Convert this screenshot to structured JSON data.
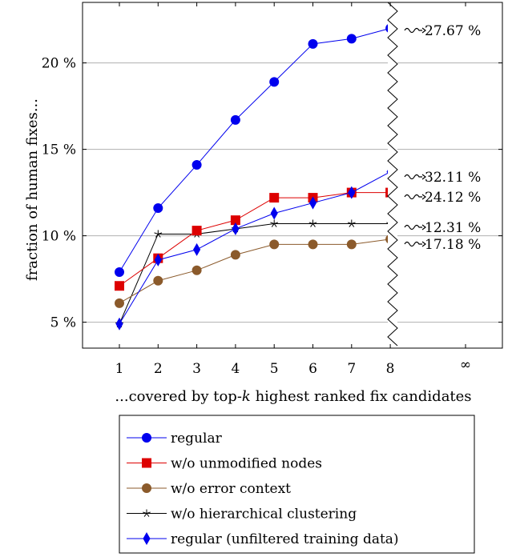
{
  "chart_data": {
    "type": "line",
    "xlabel": "...covered by top-",
    "xlabel_k": "k",
    "xlabel_rest": " highest ranked fix candidates",
    "ylabel": "fraction of human fixes...",
    "x": [
      1,
      2,
      3,
      4,
      5,
      6,
      7,
      8
    ],
    "x_tick_labels": [
      "1",
      "2",
      "3",
      "4",
      "5",
      "6",
      "7",
      "8",
      "∞"
    ],
    "ylim": [
      3.5,
      23.5
    ],
    "y_ticks": [
      5,
      10,
      15,
      20
    ],
    "y_tick_labels": [
      "5 %",
      "10 %",
      "15 %",
      "20 %"
    ],
    "grid": "horizontal",
    "legend_position": "bottom",
    "series": [
      {
        "name": "regular",
        "color": "#0000ee",
        "marker": "circle",
        "values": [
          7.9,
          11.6,
          14.1,
          16.7,
          18.9,
          21.1,
          21.4,
          22.0
        ],
        "infinity_label": "27.67 %"
      },
      {
        "name": "w/o unmodified nodes",
        "color": "#dd0000",
        "marker": "square",
        "values": [
          7.1,
          8.7,
          10.3,
          10.9,
          12.2,
          12.2,
          12.5,
          12.5
        ],
        "infinity_label": "24.12 %"
      },
      {
        "name": "w/o error context",
        "color": "#8b5a2b",
        "marker": "circle",
        "values": [
          6.1,
          7.4,
          8.0,
          8.9,
          9.5,
          9.5,
          9.5,
          9.8
        ],
        "infinity_label": "17.18 %"
      },
      {
        "name": "w/o hierarchical clustering",
        "color": "#000000",
        "marker": "star",
        "values": [
          4.9,
          10.1,
          10.1,
          10.4,
          10.7,
          10.7,
          10.7,
          10.7
        ],
        "infinity_label": "12.31 %"
      },
      {
        "name": "regular (unfiltered training data)",
        "color": "#0000ee",
        "marker": "diamond",
        "values": [
          4.9,
          8.6,
          9.2,
          10.4,
          11.3,
          11.9,
          12.5,
          13.7
        ],
        "infinity_label": "32.11 %"
      }
    ]
  }
}
